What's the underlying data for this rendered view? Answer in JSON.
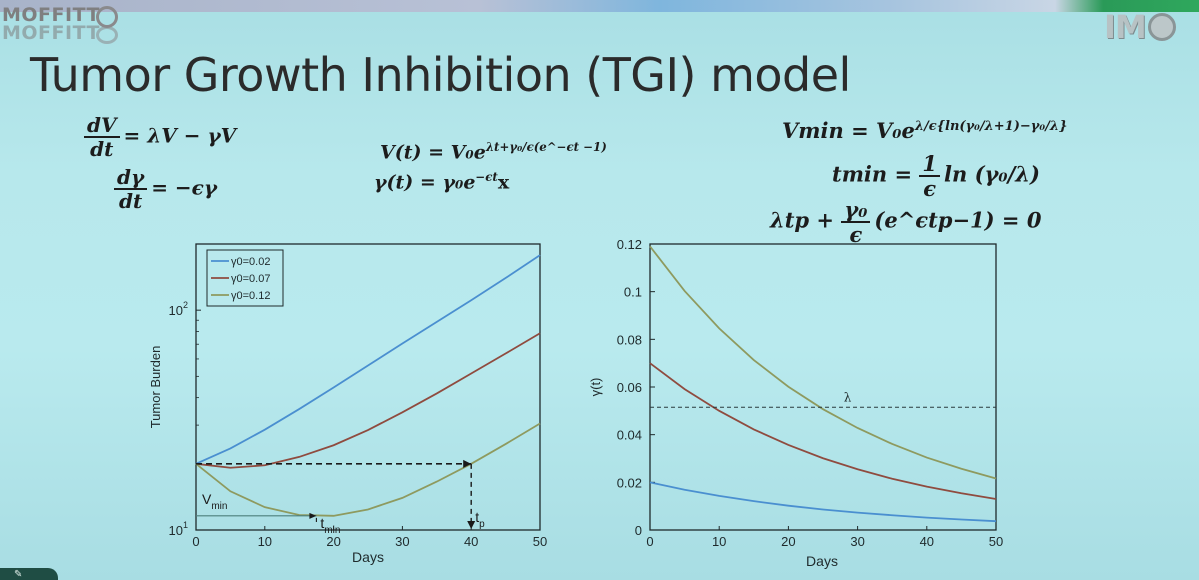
{
  "slide": {
    "logo_left_line1": "MOFFITT",
    "logo_left_line2": "MOFFITT",
    "logo_right": "IM",
    "title": "Tumor Growth Inhibition (TGI) model"
  },
  "equations": {
    "dv_num": "dV",
    "dv_den": "dt",
    "dv_rhs": "= λV − γV",
    "dg_num": "dγ",
    "dg_den": "dt",
    "dg_rhs": "= −ϵγ",
    "vt": "V(t) = V₀e",
    "vt_exp": "λt+γ₀/ϵ(e^−ϵt −1)",
    "gt": "γ(t) = γ₀e",
    "gt_exp": "−ϵt",
    "gt_tail": "x",
    "vmin": "Vmin = V₀e",
    "vmin_exp": "λ/ϵ{ln(γ₀/λ+1)−γ₀/λ}",
    "tmin_lhs": "tmin =",
    "tmin_num": "1",
    "tmin_den": "ϵ",
    "tmin_rhs": "ln (γ₀/λ)",
    "tp_lhs": "λtp +",
    "tp_num": "γ₀",
    "tp_den": "ϵ",
    "tp_rhs": "(e^ϵtp−1) = 0"
  },
  "colors": {
    "blue": "#4a8fd0",
    "red": "#8f4b3f",
    "green": "#8e9a5f",
    "axis": "#1f2a2c"
  },
  "chart_data": [
    {
      "type": "line",
      "ylabel": "Tumor Burden",
      "xlabel": "Days",
      "yscale": "log",
      "xlim": [
        0,
        50
      ],
      "ylim": [
        10,
        200
      ],
      "xticks": [
        "0",
        "10",
        "20",
        "30",
        "40",
        "50"
      ],
      "yticks": [
        {
          "value": 10,
          "base": "10",
          "exp": "1"
        },
        {
          "value": 100,
          "base": "10",
          "exp": "2"
        }
      ],
      "legend_position": "top-left",
      "series": [
        {
          "name": "γ0=0.02",
          "color": "blue",
          "x": [
            0,
            5,
            10,
            15,
            20,
            25,
            30,
            35,
            40,
            45,
            50
          ],
          "y": [
            20,
            23.5,
            28.6,
            35.5,
            44.5,
            56,
            70.5,
            88.5,
            111,
            140,
            178
          ]
        },
        {
          "name": "γ0=0.07",
          "color": "red",
          "x": [
            0,
            5,
            10,
            15,
            20,
            25,
            30,
            35,
            40,
            45,
            50
          ],
          "y": [
            20,
            19.2,
            19.7,
            21.5,
            24.3,
            28.5,
            34.3,
            41.8,
            51.5,
            63.5,
            78.5
          ]
        },
        {
          "name": "γ0=0.12",
          "color": "green",
          "x": [
            0,
            5,
            10,
            15,
            20,
            25,
            30,
            35,
            40,
            45,
            50
          ],
          "y": [
            20,
            15,
            12.7,
            11.7,
            11.6,
            12.4,
            14,
            16.6,
            20,
            24.6,
            30.5
          ]
        }
      ],
      "annotations": {
        "vmin_label": "V",
        "vmin_sub": "min",
        "tmin_label": "t",
        "tmin_sub": "min",
        "tp_label": "t",
        "tp_sub": "p",
        "v0": 20,
        "vmin": 11.6,
        "tmin": 17.5,
        "tp": 40
      }
    },
    {
      "type": "line",
      "ylabel": "γ(t)",
      "xlabel": "Days",
      "xlim": [
        0,
        50
      ],
      "ylim": [
        0,
        0.12
      ],
      "xticks": [
        "0",
        "10",
        "20",
        "30",
        "40",
        "50"
      ],
      "yticks": [
        "0",
        "0.02",
        "0.04",
        "0.06",
        "0.08",
        "0.1",
        "0.12"
      ],
      "series": [
        {
          "color": "blue",
          "x": [
            0,
            5,
            10,
            15,
            20,
            25,
            30,
            35,
            40,
            45,
            50
          ],
          "y": [
            0.02,
            0.0169,
            0.0143,
            0.0121,
            0.0102,
            0.0086,
            0.0073,
            0.0062,
            0.0052,
            0.0044,
            0.0037
          ]
        },
        {
          "color": "red",
          "x": [
            0,
            5,
            10,
            15,
            20,
            25,
            30,
            35,
            40,
            45,
            50
          ],
          "y": [
            0.07,
            0.0591,
            0.05,
            0.0422,
            0.0357,
            0.0301,
            0.0255,
            0.0215,
            0.0182,
            0.0154,
            0.013
          ]
        },
        {
          "color": "green",
          "x": [
            0,
            5,
            10,
            15,
            20,
            25,
            30,
            35,
            40,
            45,
            50
          ],
          "y": [
            0.119,
            0.1003,
            0.0846,
            0.0713,
            0.0601,
            0.0507,
            0.0428,
            0.0361,
            0.0304,
            0.0257,
            0.0216
          ]
        }
      ],
      "hline": {
        "label": "λ",
        "y": 0.0515
      }
    }
  ]
}
